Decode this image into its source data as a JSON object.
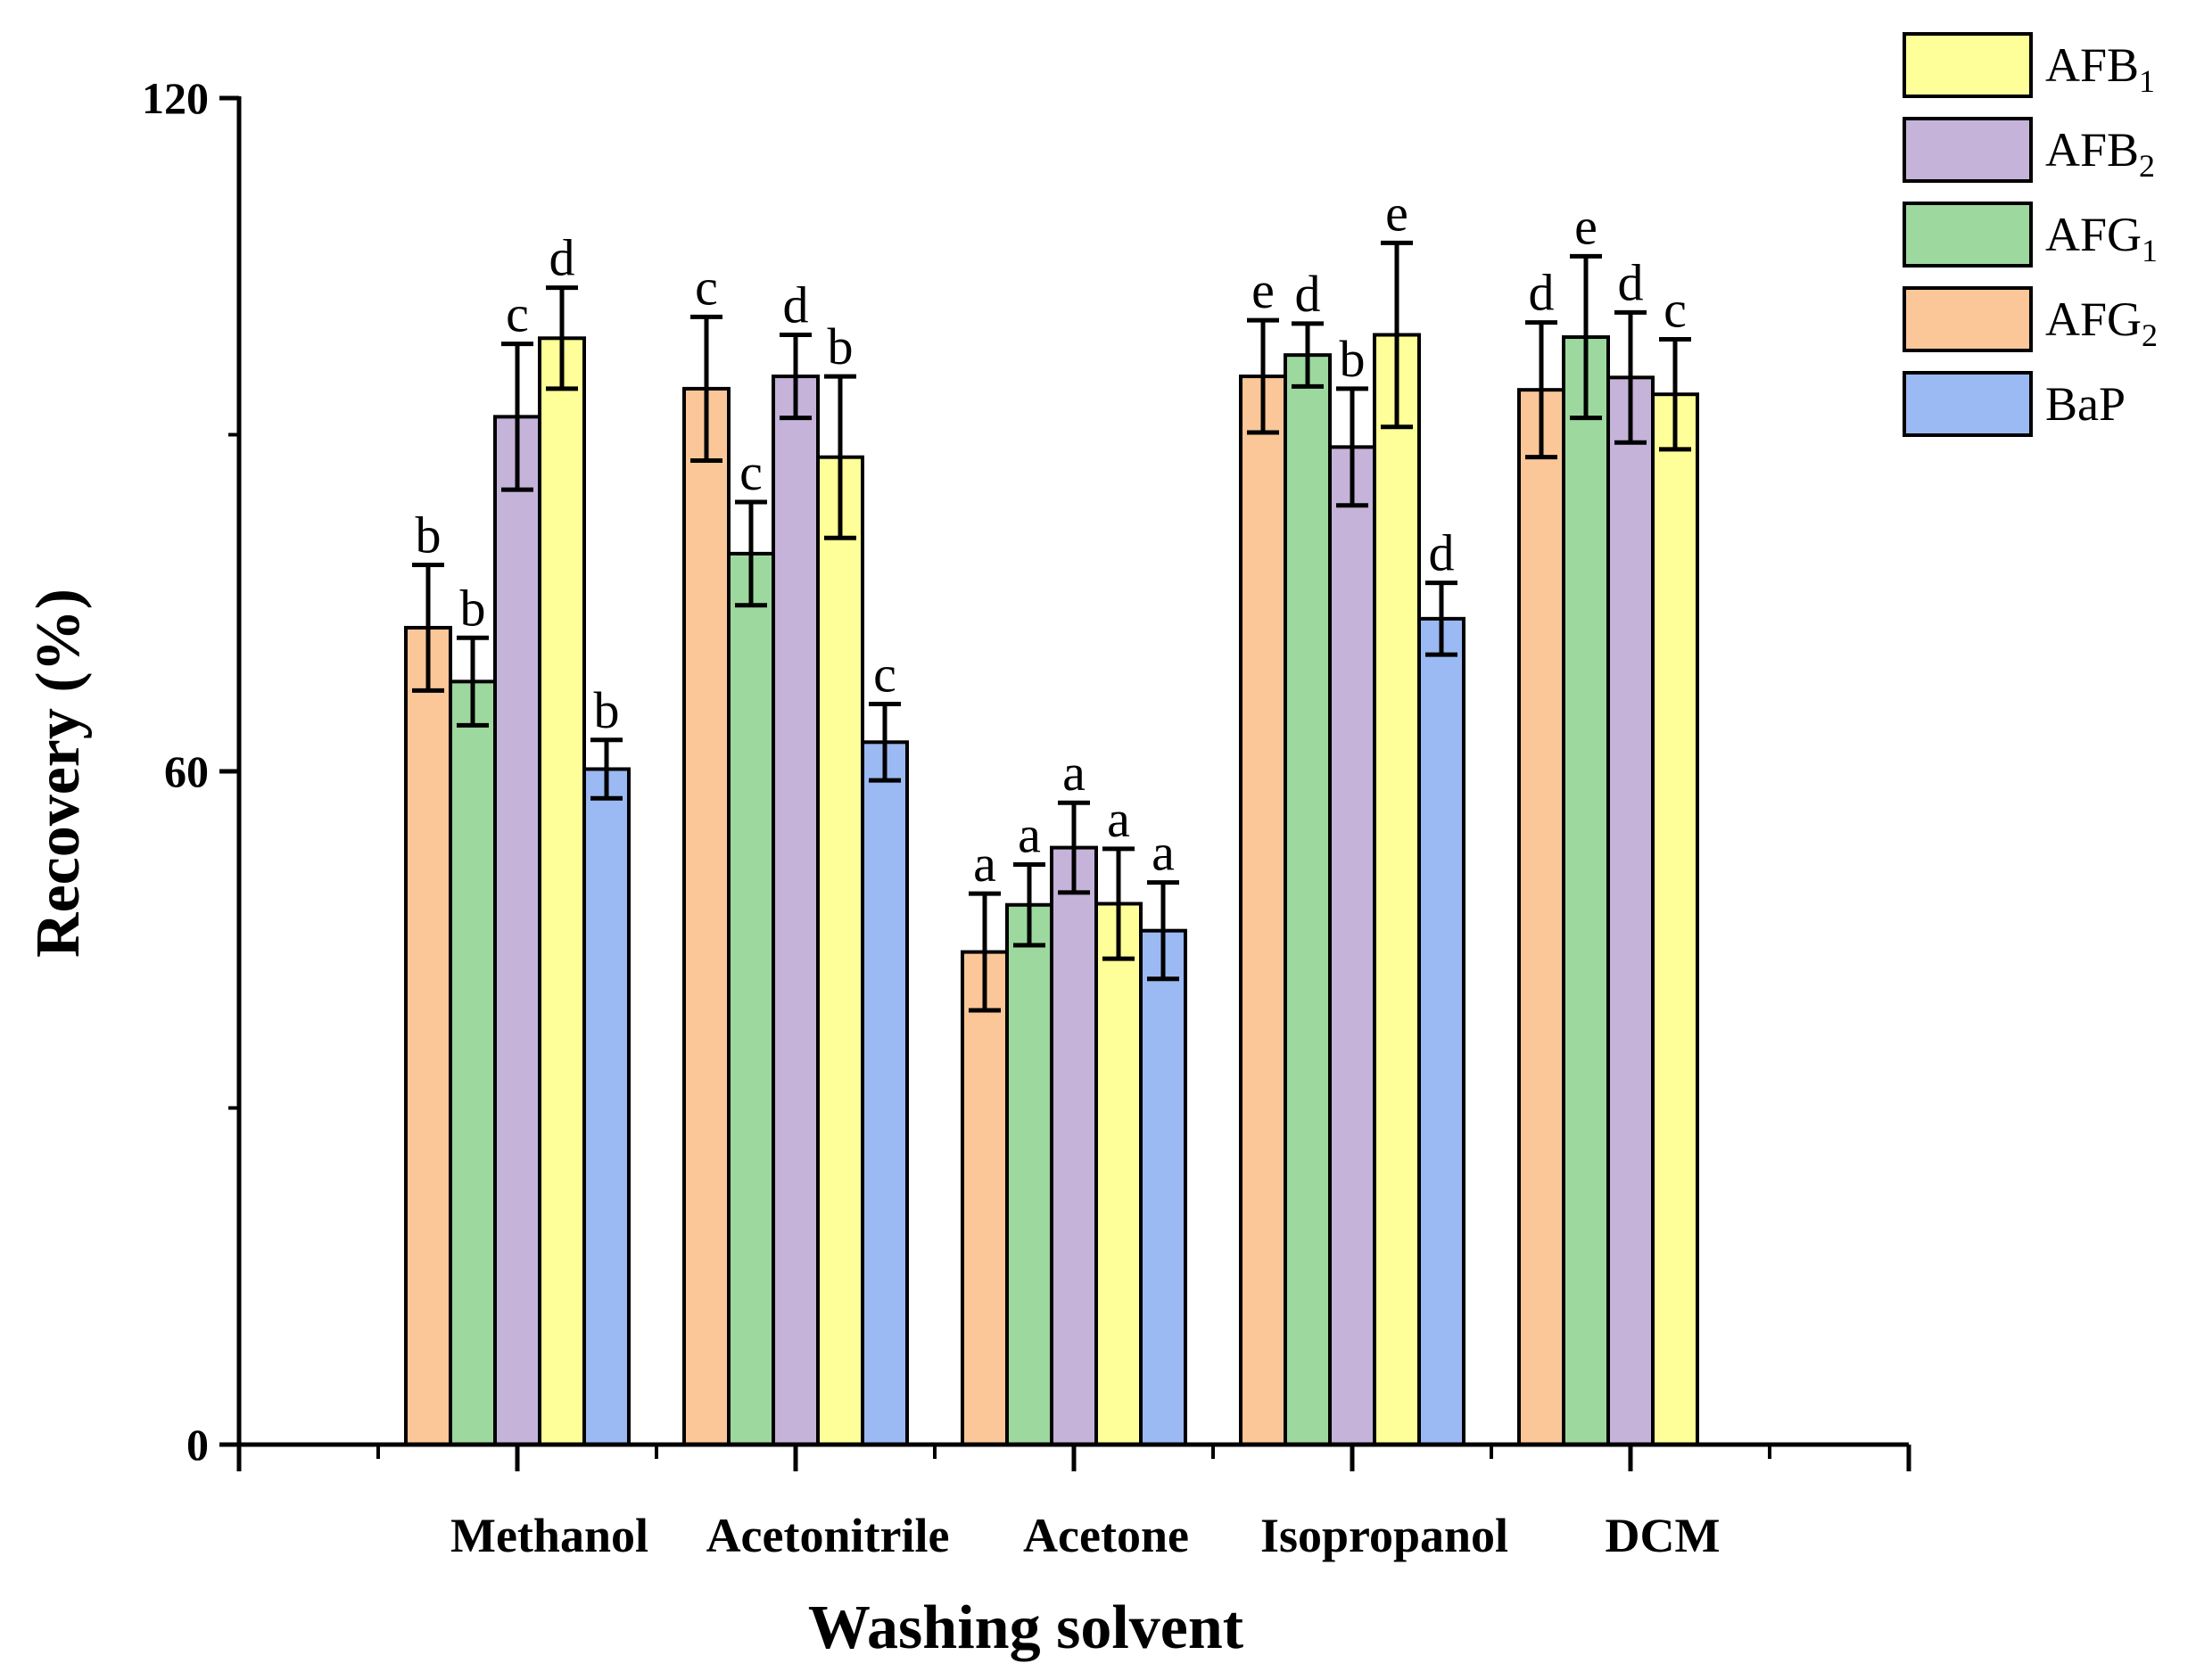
{
  "chart_data": {
    "type": "bar",
    "title": "",
    "xlabel": "Washing solvent",
    "ylabel": "Recovery (%)",
    "ylim": [
      0,
      120
    ],
    "yticks": [
      0,
      60,
      120
    ],
    "categories": [
      "Methanol",
      "Acetonitrile",
      "Acetone",
      "Isopropanol",
      "DCM"
    ],
    "legend_position": "top-right",
    "series": [
      {
        "name": "AFG2",
        "label_main": "AFG",
        "label_sub": "2",
        "color": "#FBC798",
        "values": [
          72.8,
          94.1,
          43.9,
          95.2,
          94.0
        ],
        "errors": [
          5.6,
          6.4,
          5.2,
          5.0,
          6.0
        ],
        "letters": [
          "b",
          "c",
          "a",
          "e",
          "d"
        ]
      },
      {
        "name": "AFG1",
        "label_main": "AFG",
        "label_sub": "1",
        "color": "#9DD89F",
        "values": [
          68.0,
          79.4,
          48.1,
          97.1,
          98.7
        ],
        "errors": [
          3.9,
          4.6,
          3.6,
          2.8,
          7.2
        ],
        "letters": [
          "b",
          "c",
          "a",
          "d",
          "e"
        ]
      },
      {
        "name": "AFB2",
        "label_main": "AFB",
        "label_sub": "2",
        "color": "#C5B3D9",
        "values": [
          91.6,
          95.2,
          53.2,
          88.9,
          95.1
        ],
        "errors": [
          6.5,
          3.7,
          4.0,
          5.2,
          5.8
        ],
        "letters": [
          "c",
          "d",
          "a",
          "b",
          "d"
        ]
      },
      {
        "name": "AFB1",
        "label_main": "AFB",
        "label_sub": "1",
        "color": "#FFFF99",
        "values": [
          98.6,
          88.0,
          48.2,
          98.9,
          93.6
        ],
        "errors": [
          4.5,
          7.2,
          4.9,
          8.2,
          4.9
        ],
        "letters": [
          "d",
          "b",
          "a",
          "e",
          "c"
        ]
      },
      {
        "name": "BaP",
        "label_main": "BaP",
        "label_sub": "",
        "color": "#9BB9F2",
        "values": [
          60.2,
          62.6,
          45.8,
          73.6,
          null
        ],
        "errors": [
          2.6,
          3.4,
          4.3,
          3.2,
          null
        ],
        "letters": [
          "b",
          "c",
          "a",
          "d",
          null
        ]
      }
    ],
    "legend_order": [
      "AFB1",
      "AFB2",
      "AFG1",
      "AFG2",
      "BaP"
    ]
  }
}
